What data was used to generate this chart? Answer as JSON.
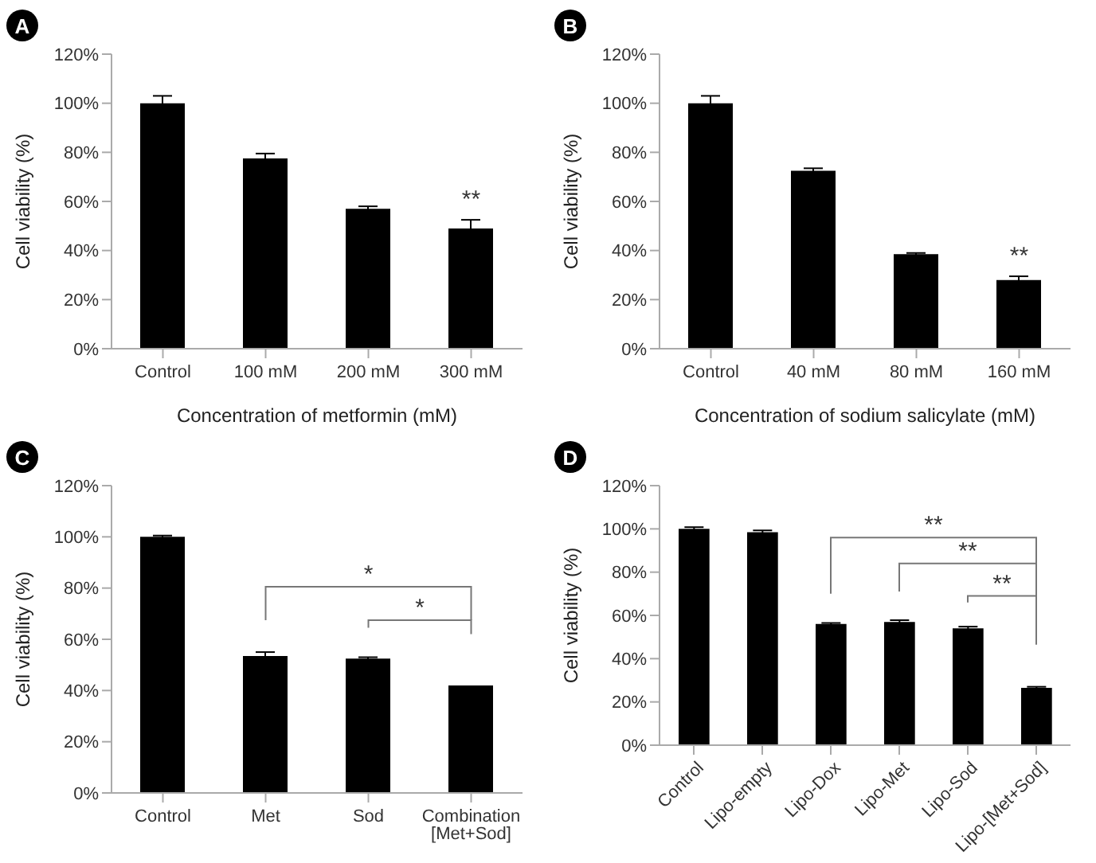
{
  "chart_data": [
    {
      "type": "bar",
      "title": "A",
      "xlabel": "Concentration of metformin (mM)",
      "ylabel": "Cell viability (%)",
      "categories": [
        "Control",
        "100 mM",
        "200 mM",
        "300 mM"
      ],
      "values": [
        100,
        77.5,
        57,
        49
      ],
      "errors": [
        3,
        2,
        1,
        3.5
      ],
      "color": "#000000",
      "ylim": [
        0,
        120
      ],
      "yticks": [
        {
          "value": 0,
          "label": "0%"
        },
        {
          "value": 20,
          "label": "20%"
        },
        {
          "value": 40,
          "label": "40%"
        },
        {
          "value": 60,
          "label": "60%"
        },
        {
          "value": 80,
          "label": "80%"
        },
        {
          "value": 100,
          "label": "100%"
        },
        {
          "value": 120,
          "label": "120%"
        }
      ],
      "annotations": [
        "**"
      ]
    },
    {
      "type": "bar",
      "title": "B",
      "xlabel": "Concentration of sodium salicylate (mM)",
      "ylabel": "Cell viability (%)",
      "categories": [
        "Control",
        "40 mM",
        "80 mM",
        "160 mM"
      ],
      "values": [
        100,
        72.5,
        38.5,
        28
      ],
      "errors": [
        3,
        1,
        0.5,
        1.5
      ],
      "color": "#000000",
      "ylim": [
        0,
        120
      ],
      "yticks": [
        {
          "value": 0,
          "label": "0%"
        },
        {
          "value": 20,
          "label": "20%"
        },
        {
          "value": 40,
          "label": "40%"
        },
        {
          "value": 60,
          "label": "60%"
        },
        {
          "value": 80,
          "label": "80%"
        },
        {
          "value": 100,
          "label": "100%"
        },
        {
          "value": 120,
          "label": "120%"
        }
      ],
      "annotations": [
        "**"
      ]
    },
    {
      "type": "bar",
      "title": "C",
      "ylabel": "Cell viability (%)",
      "categories": [
        "Control",
        "Met",
        "Sod",
        "Combination [Met+Sod]"
      ],
      "values": [
        100,
        53.5,
        52.5,
        42
      ],
      "errors": [
        0.5,
        1.5,
        0.5,
        null
      ],
      "color": "#000000",
      "ylim": [
        0,
        120
      ],
      "yticks": [
        {
          "value": 0,
          "label": "0%"
        },
        {
          "value": 20,
          "label": "20%"
        },
        {
          "value": 40,
          "label": "40%"
        },
        {
          "value": 60,
          "label": "60%"
        },
        {
          "value": 80,
          "label": "80%"
        },
        {
          "value": 100,
          "label": "100%"
        },
        {
          "value": 120,
          "label": "120%"
        }
      ],
      "annotations": [
        "*",
        "*"
      ]
    },
    {
      "type": "bar",
      "title": "D",
      "ylabel": "Cell viability (%)",
      "categories": [
        "Control",
        "Lipo-empty",
        "Lipo-Dox",
        "Lipo-Met",
        "Lipo-Sod",
        "Lipo-[Met+Sod]"
      ],
      "values": [
        100,
        98.5,
        56,
        57,
        54,
        26.5
      ],
      "errors": [
        0.8,
        0.8,
        0.5,
        0.8,
        0.8,
        0.5
      ],
      "color": "#000000",
      "ylim": [
        0,
        120
      ],
      "yticks": [
        {
          "value": 0,
          "label": "0%"
        },
        {
          "value": 20,
          "label": "20%"
        },
        {
          "value": 40,
          "label": "40%"
        },
        {
          "value": 60,
          "label": "60%"
        },
        {
          "value": 80,
          "label": "80%"
        },
        {
          "value": 100,
          "label": "100%"
        },
        {
          "value": 120,
          "label": "120%"
        }
      ],
      "annotations": [
        "**",
        "**",
        "**"
      ]
    }
  ]
}
